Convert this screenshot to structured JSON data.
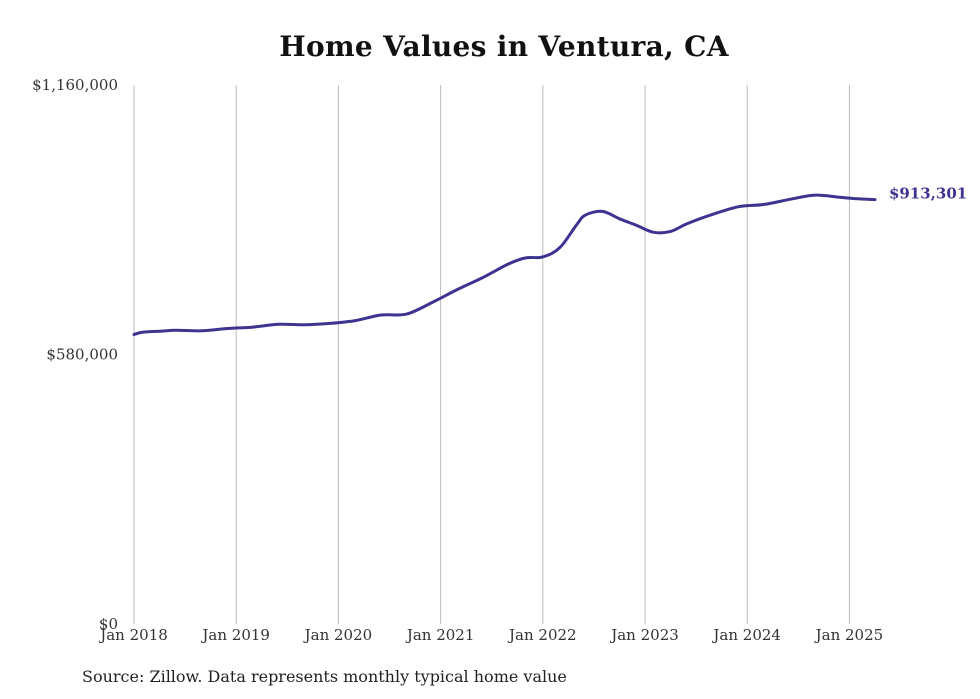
{
  "chart_data": {
    "type": "line",
    "title": "Home Values in Ventura, CA",
    "xlabel": "",
    "ylabel": "",
    "ylim": [
      0,
      1160000
    ],
    "yticks": [
      0,
      580000,
      1160000
    ],
    "ytick_labels": [
      "$0",
      "$580,000",
      "$1,160,000"
    ],
    "xticks": [
      "2018-01",
      "2019-01",
      "2020-01",
      "2021-01",
      "2022-01",
      "2023-01",
      "2024-01",
      "2025-01"
    ],
    "xtick_labels": [
      "Jan 2018",
      "Jan 2019",
      "Jan 2020",
      "Jan 2021",
      "Jan 2022",
      "Jan 2023",
      "Jan 2024",
      "Jan 2025"
    ],
    "grid": "vertical",
    "legend": "none",
    "series": [
      {
        "color": "#3d3491",
        "points": [
          {
            "x": "2018-01",
            "y": 623000
          },
          {
            "x": "2018-02",
            "y": 628000
          },
          {
            "x": "2018-04",
            "y": 630000
          },
          {
            "x": "2018-06",
            "y": 632000
          },
          {
            "x": "2018-09",
            "y": 631000
          },
          {
            "x": "2018-12",
            "y": 636000
          },
          {
            "x": "2019-03",
            "y": 639000
          },
          {
            "x": "2019-06",
            "y": 645000
          },
          {
            "x": "2019-09",
            "y": 644000
          },
          {
            "x": "2019-12",
            "y": 647000
          },
          {
            "x": "2020-03",
            "y": 653000
          },
          {
            "x": "2020-06",
            "y": 665000
          },
          {
            "x": "2020-09",
            "y": 667000
          },
          {
            "x": "2020-12",
            "y": 692000
          },
          {
            "x": "2021-03",
            "y": 720000
          },
          {
            "x": "2021-06",
            "y": 746000
          },
          {
            "x": "2021-09",
            "y": 775000
          },
          {
            "x": "2021-11",
            "y": 788000
          },
          {
            "x": "2022-01",
            "y": 790000
          },
          {
            "x": "2022-03",
            "y": 810000
          },
          {
            "x": "2022-05",
            "y": 860000
          },
          {
            "x": "2022-06",
            "y": 880000
          },
          {
            "x": "2022-08",
            "y": 888000
          },
          {
            "x": "2022-10",
            "y": 872000
          },
          {
            "x": "2022-12",
            "y": 858000
          },
          {
            "x": "2023-02",
            "y": 843000
          },
          {
            "x": "2023-04",
            "y": 845000
          },
          {
            "x": "2023-06",
            "y": 862000
          },
          {
            "x": "2023-09",
            "y": 882000
          },
          {
            "x": "2023-12",
            "y": 898000
          },
          {
            "x": "2024-03",
            "y": 903000
          },
          {
            "x": "2024-06",
            "y": 914000
          },
          {
            "x": "2024-09",
            "y": 923000
          },
          {
            "x": "2024-12",
            "y": 918000
          },
          {
            "x": "2025-02",
            "y": 915000
          },
          {
            "x": "2025-04",
            "y": 913301
          }
        ]
      }
    ],
    "end_label": "$913,301",
    "source": "Source: Zillow. Data represents monthly typical home value"
  }
}
